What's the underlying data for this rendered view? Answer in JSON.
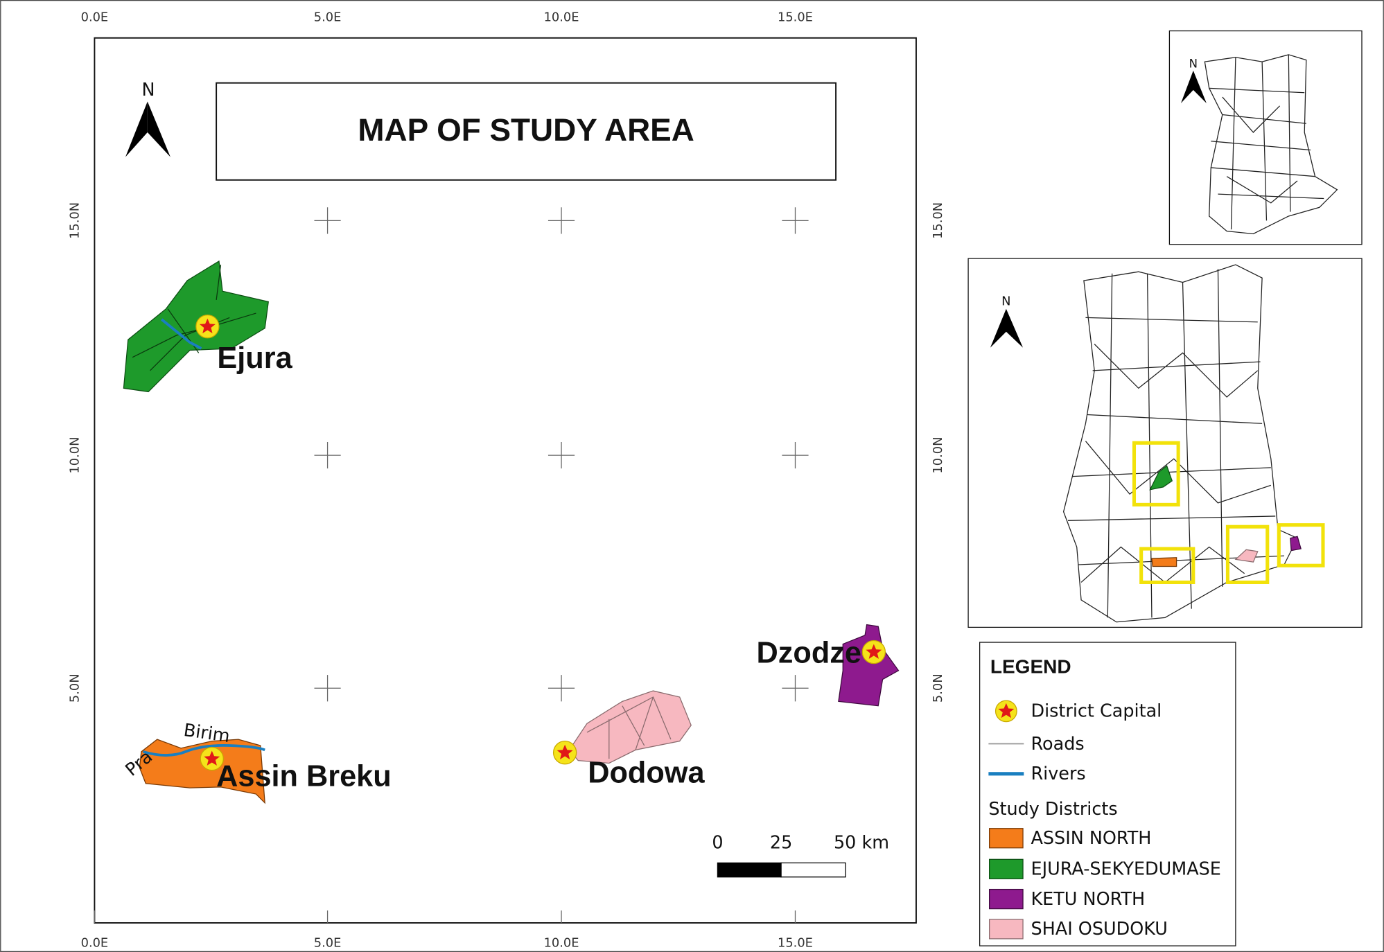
{
  "title": "MAP OF STUDY AREA",
  "north_arrows": [
    "N",
    "N",
    "N"
  ],
  "axes": {
    "x_labels": [
      "0.0E",
      "5.0E",
      "10.0E",
      "15.0E"
    ],
    "y_labels": [
      "15.0N",
      "10.0N",
      "5.0N"
    ]
  },
  "places": [
    "Ejura",
    "Assin Breku",
    "Dodowa",
    "Dzodze"
  ],
  "rivers": [
    "Birim",
    "Pra"
  ],
  "scale_bar": [
    "0",
    "25",
    "50 km"
  ],
  "legend": {
    "title": "LEGEND",
    "items": [
      "District Capital",
      "Roads",
      "Rivers"
    ],
    "subtitle": "Study Districts",
    "districts": [
      "ASSIN NORTH",
      "EJURA-SEKYEDUMASE",
      "KETU NORTH",
      "SHAI OSUDOKU"
    ]
  }
}
